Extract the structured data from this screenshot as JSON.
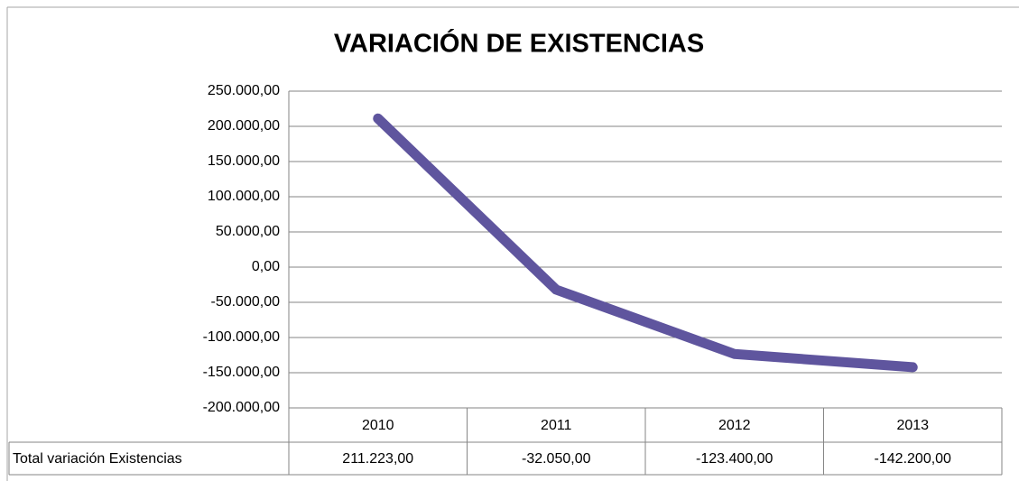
{
  "chart_data": {
    "type": "line",
    "title": "VARIACIÓN DE EXISTENCIAS",
    "categories": [
      "2010",
      "2011",
      "2012",
      "2013"
    ],
    "series": [
      {
        "name": "Total variación Existencias",
        "color": "#5f559e",
        "values": [
          211223,
          -32050,
          -123400,
          -142200
        ],
        "value_labels": [
          "211.223,00",
          "-32.050,00",
          "-123.400,00",
          "-142.200,00"
        ]
      }
    ],
    "ylim": [
      -200000,
      250000
    ],
    "yticks": [
      {
        "value": -200000,
        "label": "-200.000,00"
      },
      {
        "value": -150000,
        "label": "-150.000,00"
      },
      {
        "value": -100000,
        "label": "-100.000,00"
      },
      {
        "value": -50000,
        "label": "-50.000,00"
      },
      {
        "value": 0,
        "label": "0,00"
      },
      {
        "value": 50000,
        "label": "50.000,00"
      },
      {
        "value": 100000,
        "label": "100.000,00"
      },
      {
        "value": 150000,
        "label": "150.000,00"
      },
      {
        "value": 200000,
        "label": "200.000,00"
      },
      {
        "value": 250000,
        "label": "250.000,00"
      }
    ],
    "grid": true,
    "data_table": true
  }
}
